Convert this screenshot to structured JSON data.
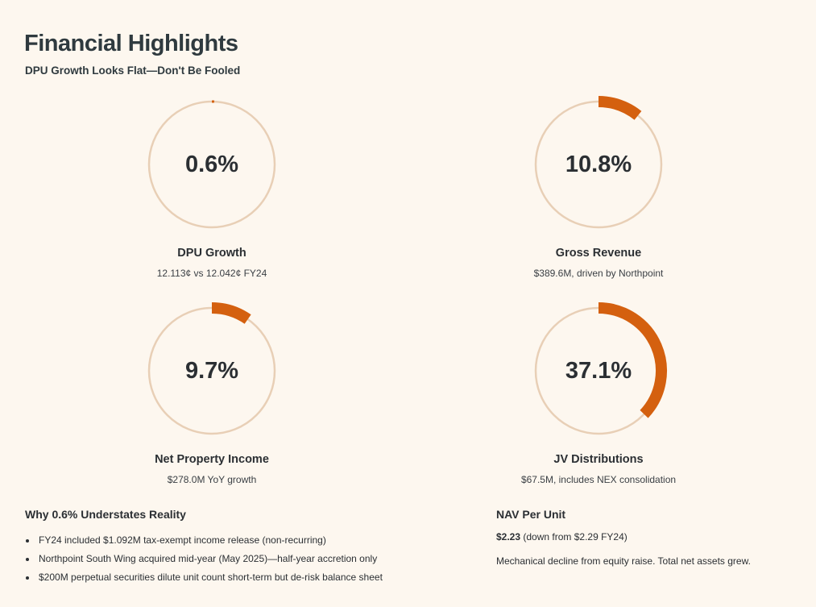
{
  "header": {
    "title": "Financial Highlights",
    "subtitle": "DPU Growth Looks Flat—Don't Be Fooled"
  },
  "colors": {
    "background": "#fdf7ef",
    "ring_track": "#e8cfb6",
    "ring_fill": "#d4600f",
    "text": "#2b2f33"
  },
  "chart_data": {
    "type": "radial-progress",
    "items": [
      {
        "value_label": "0.6%",
        "value": 0.6,
        "label": "DPU Growth",
        "detail": "12.113¢ vs 12.042¢ FY24"
      },
      {
        "value_label": "10.8%",
        "value": 10.8,
        "label": "Gross Revenue",
        "detail": "$389.6M, driven by Northpoint"
      },
      {
        "value_label": "9.7%",
        "value": 9.7,
        "label": "Net Property Income",
        "detail": "$278.0M YoY growth"
      },
      {
        "value_label": "37.1%",
        "value": 37.1,
        "label": "JV Distributions",
        "detail": "$67.5M, includes NEX consolidation"
      }
    ]
  },
  "understates": {
    "heading": "Why 0.6% Understates Reality",
    "bullets": [
      "FY24 included $1.092M tax-exempt income release (non-recurring)",
      "Northpoint South Wing acquired mid-year (May 2025)—half-year accretion only",
      "$200M perpetual securities dilute unit count short-term but de-risk balance sheet"
    ]
  },
  "nav": {
    "heading": "NAV Per Unit",
    "value": "$2.23",
    "value_note": " (down from $2.29 FY24)",
    "note": "Mechanical decline from equity raise. Total net assets grew."
  }
}
